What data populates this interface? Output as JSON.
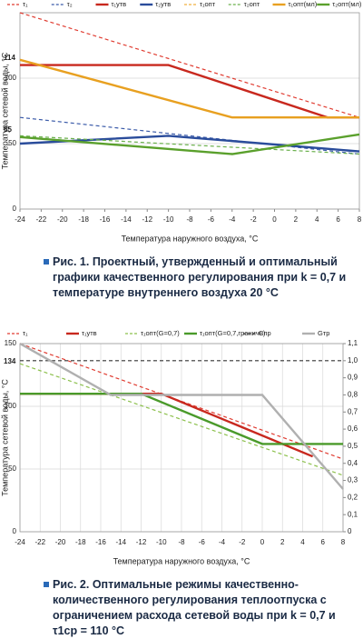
{
  "chart_data": [
    {
      "type": "line",
      "xlabel": "Температура наружного воздуха, °С",
      "ylabel": "Температура сетевой воды, °С",
      "xlim": [
        -24,
        8
      ],
      "xticks": [
        -24,
        -22,
        -20,
        -18,
        -16,
        -14,
        -12,
        -10,
        -8,
        -6,
        -4,
        -2,
        0,
        2,
        4,
        6,
        8
      ],
      "ylim": [
        0,
        150
      ],
      "yticks": [
        0,
        50,
        100
      ],
      "grid": "y",
      "annotations": [
        {
          "text": "114",
          "color": "#e8a020"
        },
        {
          "text": "55",
          "color": "#5aa02c"
        }
      ],
      "series": [
        {
          "name": "τ₁",
          "color": "#e03c31",
          "dash": true,
          "x": [
            -24,
            8
          ],
          "values": [
            150,
            70
          ]
        },
        {
          "name": "τ₂",
          "color": "#3b5ba9",
          "dash": true,
          "x": [
            -24,
            8
          ],
          "values": [
            70,
            42
          ]
        },
        {
          "name": "τ₁утв",
          "color": "#c8281e",
          "dash": false,
          "x": [
            -24,
            -10,
            5,
            8
          ],
          "values": [
            110,
            110,
            70,
            70
          ]
        },
        {
          "name": "τ₂утв",
          "color": "#2a4c9b",
          "dash": false,
          "x": [
            -24,
            -10,
            8
          ],
          "values": [
            50,
            56,
            44
          ]
        },
        {
          "name": "τ₁опт",
          "color": "#f0b040",
          "dash": true,
          "x": [
            -24,
            -4
          ],
          "values": [
            114,
            70
          ]
        },
        {
          "name": "τ₂опт",
          "color": "#6ab04c",
          "dash": true,
          "x": [
            -24,
            8
          ],
          "values": [
            56,
            42
          ]
        },
        {
          "name": "τ₁опт(мл)",
          "color": "#e8a020",
          "dash": false,
          "x": [
            -24,
            -4,
            8
          ],
          "values": [
            114,
            70,
            70
          ]
        },
        {
          "name": "τ₂опт(мл)",
          "color": "#5aa02c",
          "dash": false,
          "x": [
            -24,
            -4,
            8
          ],
          "values": [
            55,
            42,
            57
          ]
        }
      ],
      "caption": "Рис. 1. Проектный, утвержденный и оптимальный графики качественного регулирования при k = 0,7 и температуре внутреннего воздуха 20 °С"
    },
    {
      "type": "line",
      "xlabel": "Температура наружного воздуха, °С",
      "ylabel": "Температура сетевой воды, °С",
      "xlim": [
        -24,
        8
      ],
      "xticks": [
        -24,
        -22,
        -20,
        -18,
        -16,
        -14,
        -12,
        -10,
        -8,
        -6,
        -4,
        -2,
        0,
        2,
        4,
        6,
        8
      ],
      "ylim": [
        0,
        150
      ],
      "yticks": [
        0,
        50,
        100,
        150
      ],
      "y2lim": [
        0,
        1.1
      ],
      "y2ticks": [
        0,
        {
          "value": 0.1,
          "label": "0,1"
        },
        {
          "value": 0.2,
          "label": "0,2"
        },
        {
          "value": 0.3,
          "label": "0,3"
        },
        {
          "value": 0.4,
          "label": "0,4"
        },
        {
          "value": 0.5,
          "label": "0,5"
        },
        {
          "value": 0.6,
          "label": "0,6"
        },
        {
          "value": 0.7,
          "label": "0,7"
        },
        {
          "value": 0.8,
          "label": "0,8"
        },
        {
          "value": 0.9,
          "label": "0,9"
        },
        {
          "value": 1.0,
          "label": "1,0"
        },
        {
          "value": 1.1,
          "label": "1,1"
        }
      ],
      "grid": "both",
      "annotations": [
        {
          "text": "134",
          "color": "#5aa02c"
        }
      ],
      "series": [
        {
          "name": "τ₁",
          "color": "#e03c31",
          "dash": true,
          "x": [
            -24,
            8
          ],
          "values": [
            150,
            58
          ]
        },
        {
          "name": "τ₁утв",
          "color": "#c8281e",
          "dash": false,
          "x": [
            -24,
            -10,
            5
          ],
          "values": [
            110,
            110,
            60
          ]
        },
        {
          "name": "τ₁опт(G=0,7)",
          "color": "#8cc04c",
          "dash": true,
          "x": [
            -24,
            8
          ],
          "values": [
            134,
            45
          ]
        },
        {
          "name": "τ₁опт(G=0,7,граничн)",
          "color": "#4a9a2a",
          "dash": false,
          "x": [
            -24,
            -12,
            0,
            8
          ],
          "values": [
            110,
            110,
            70,
            70
          ]
        },
        {
          "name": "Cпр",
          "color": "#333333",
          "dash": true,
          "axis": "y2",
          "x": [
            -24,
            8
          ],
          "values": [
            1.0,
            1.0
          ]
        },
        {
          "name": "Gтр",
          "color": "#b0b0b0",
          "dash": false,
          "axis": "y2",
          "x": [
            -24,
            -15,
            0,
            8
          ],
          "values": [
            1.1,
            0.8,
            0.8,
            0.25
          ]
        }
      ],
      "caption": "Рис. 2. Оптимальные режимы качественно-количественного регулирования теплоотпуска с ограничением расхода сетевой воды при k = 0,7 и τ1ср = 110 °С"
    }
  ]
}
